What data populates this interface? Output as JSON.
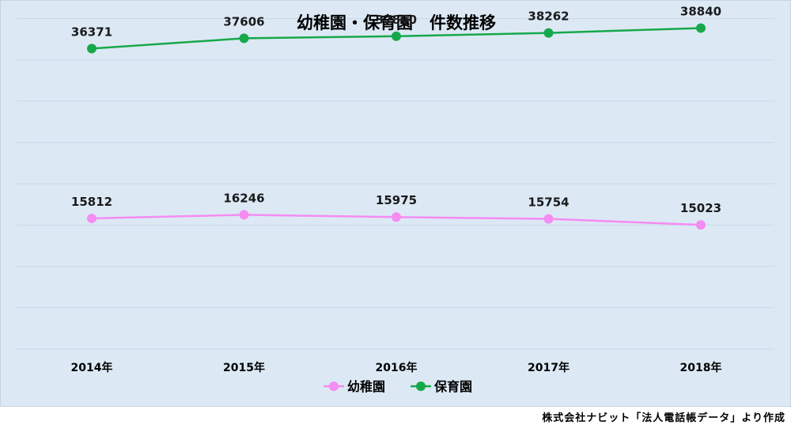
{
  "chart_data": {
    "type": "line",
    "title": "幼稚園・保育園　件数推移",
    "categories": [
      "2014年",
      "2015年",
      "2016年",
      "2017年",
      "2018年"
    ],
    "series": [
      {
        "name": "幼稚園",
        "color": "#f58cf2",
        "values": [
          15812,
          16246,
          15975,
          15754,
          15023
        ]
      },
      {
        "name": "保育園",
        "color": "#17a84b",
        "values": [
          36371,
          37606,
          37860,
          38262,
          38840
        ]
      }
    ],
    "ylim": [
      0,
      41000
    ],
    "grid": true,
    "legend": "bottom"
  },
  "source_note": "株式会社ナビット「法人電話帳データ」より作成"
}
